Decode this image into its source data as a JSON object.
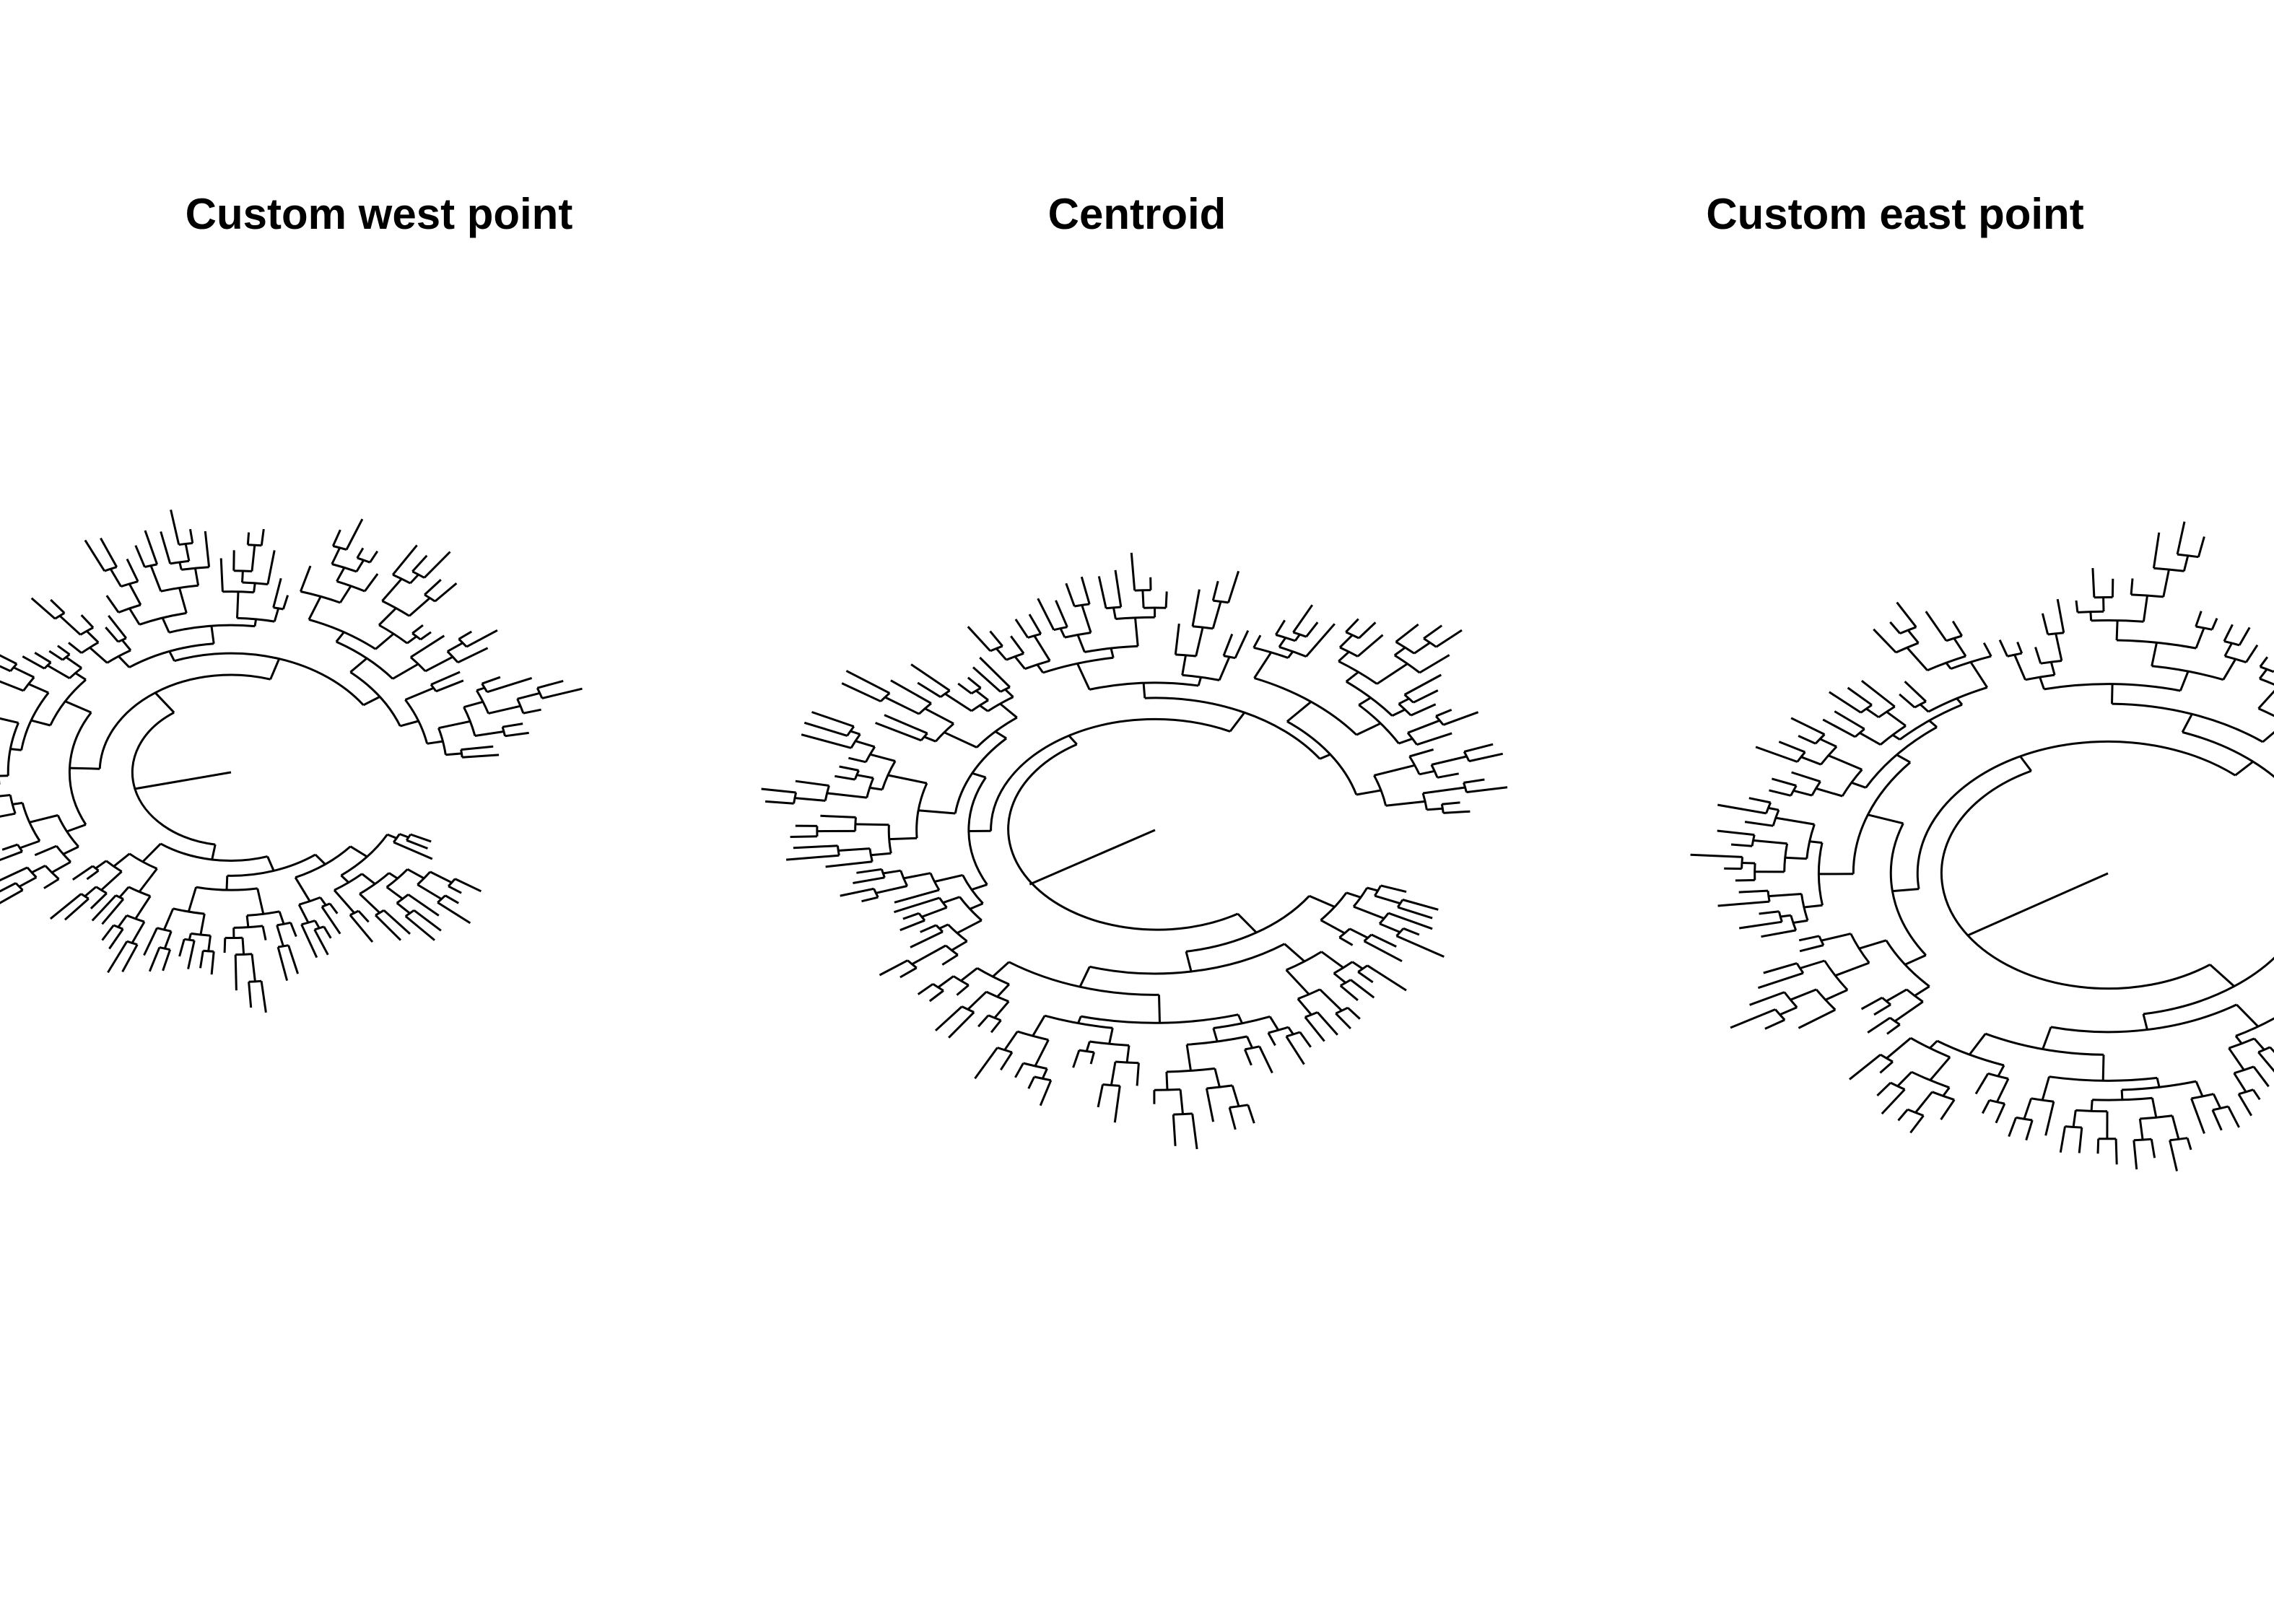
{
  "panels": [
    {
      "id": "west",
      "title": "Custom west point",
      "tips": 130
    },
    {
      "id": "centroid",
      "title": "Centroid",
      "tips": 130
    },
    {
      "id": "east",
      "title": "Custom east point",
      "tips": 130
    }
  ],
  "style": {
    "line_color": "#000000",
    "background": "#ffffff"
  }
}
